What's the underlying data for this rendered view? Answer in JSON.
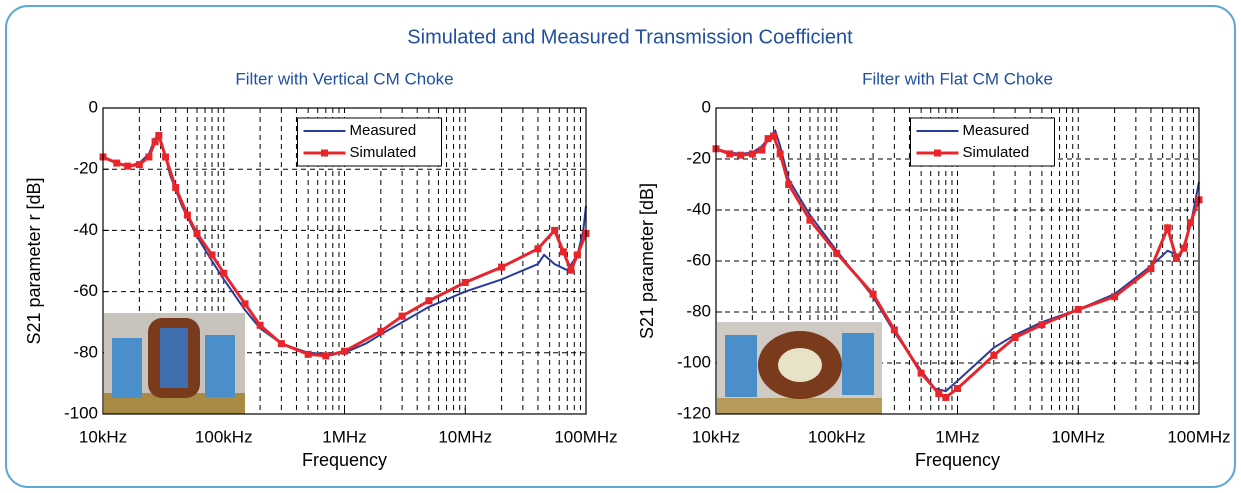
{
  "title": "Simulated and Measured Transmission Coefficient",
  "chart_data": [
    {
      "type": "line",
      "title": "Filter with Vertical CM Choke",
      "xlabel": "Frequency",
      "ylabel": "S21 parameter r [dB]",
      "x_scale": "log",
      "xlim": [
        10000,
        100000000
      ],
      "xticks": [
        {
          "value": 10000,
          "label": "10kHz"
        },
        {
          "value": 100000,
          "label": "100kHz"
        },
        {
          "value": 1000000,
          "label": "1MHz"
        },
        {
          "value": 10000000,
          "label": "10MHz"
        },
        {
          "value": 100000000,
          "label": "100MHz"
        }
      ],
      "ylim": [
        -100,
        0
      ],
      "yticks": [
        -100,
        -80,
        -60,
        -40,
        -20,
        0
      ],
      "grid": true,
      "minor_grid": true,
      "legend": "upper center",
      "series": [
        {
          "name": "Measured",
          "color": "#2b3b9c",
          "marker": "none",
          "x": [
            10000,
            13000,
            16000,
            20000,
            24000,
            27000,
            29000,
            32000,
            36000,
            45000,
            60000,
            80000,
            100000,
            150000,
            200000,
            300000,
            500000,
            700000,
            1000000,
            1500000,
            2000000,
            3000000,
            5000000,
            10000000,
            20000000,
            40000000,
            45000000,
            55000000,
            70000000,
            85000000,
            95000000,
            100000000
          ],
          "values": [
            -16,
            -18,
            -19,
            -18,
            -15,
            -10,
            -8.5,
            -14,
            -22,
            -32,
            -42,
            -50,
            -56,
            -66,
            -72,
            -77,
            -80,
            -80.5,
            -80,
            -77,
            -74,
            -70,
            -65,
            -60,
            -56,
            -51,
            -48,
            -51,
            -53,
            -48,
            -40,
            -32
          ]
        },
        {
          "name": "Simulated",
          "color": "#e8252b",
          "marker": "square",
          "x": [
            10000,
            13000,
            16000,
            20000,
            24000,
            27000,
            29000,
            33000,
            40000,
            50000,
            60000,
            80000,
            100000,
            150000,
            200000,
            300000,
            500000,
            700000,
            1000000,
            2000000,
            3000000,
            5000000,
            10000000,
            20000000,
            40000000,
            55000000,
            65000000,
            75000000,
            85000000,
            100000000
          ],
          "values": [
            -16,
            -18,
            -19,
            -18.5,
            -16,
            -11,
            -9,
            -16,
            -26,
            -35,
            -41,
            -48,
            -54,
            -64,
            -71,
            -77,
            -80.5,
            -81,
            -79.5,
            -73,
            -68,
            -63,
            -57,
            -52,
            -46,
            -40,
            -47,
            -53,
            -48,
            -41
          ]
        }
      ]
    },
    {
      "type": "line",
      "title": "Filter with Flat CM Choke",
      "xlabel": "Frequency",
      "ylabel": "S21 parameter [dB]",
      "x_scale": "log",
      "xlim": [
        10000,
        100000000
      ],
      "xticks": [
        {
          "value": 10000,
          "label": "10kHz"
        },
        {
          "value": 100000,
          "label": "100kHz"
        },
        {
          "value": 1000000,
          "label": "1MHz"
        },
        {
          "value": 10000000,
          "label": "10MHz"
        },
        {
          "value": 100000000,
          "label": "100MHz"
        }
      ],
      "ylim": [
        -120,
        0
      ],
      "yticks": [
        -120,
        -100,
        -80,
        -60,
        -40,
        -20,
        0
      ],
      "grid": true,
      "minor_grid": true,
      "legend": "upper center",
      "series": [
        {
          "name": "Measured",
          "color": "#2b3b9c",
          "marker": "none",
          "x": [
            10000,
            13000,
            16000,
            20000,
            24000,
            28000,
            31000,
            34000,
            40000,
            60000,
            100000,
            200000,
            300000,
            500000,
            650000,
            800000,
            1000000,
            2000000,
            3000000,
            5000000,
            10000000,
            20000000,
            40000000,
            55000000,
            70000000,
            85000000,
            100000000
          ],
          "values": [
            -16,
            -17.5,
            -18,
            -17.5,
            -15,
            -11,
            -9,
            -15,
            -28,
            -42,
            -56,
            -74,
            -88,
            -103,
            -110,
            -111,
            -107,
            -94,
            -89,
            -84,
            -79,
            -73,
            -62,
            -56,
            -58,
            -46,
            -29
          ]
        },
        {
          "name": "Simulated",
          "color": "#e8252b",
          "marker": "square",
          "x": [
            10000,
            13000,
            16000,
            20000,
            24000,
            27000,
            30000,
            34000,
            40000,
            60000,
            100000,
            200000,
            300000,
            500000,
            700000,
            800000,
            1000000,
            2000000,
            3000000,
            5000000,
            10000000,
            20000000,
            40000000,
            55000000,
            65000000,
            75000000,
            85000000,
            100000000
          ],
          "values": [
            -16,
            -18,
            -18.5,
            -18,
            -16.5,
            -12,
            -11,
            -18,
            -30,
            -44,
            -57,
            -73,
            -87,
            -104,
            -112,
            -113.5,
            -110,
            -97,
            -90,
            -85,
            -79,
            -74,
            -63,
            -47,
            -59,
            -55,
            -45,
            -36
          ]
        }
      ]
    }
  ]
}
